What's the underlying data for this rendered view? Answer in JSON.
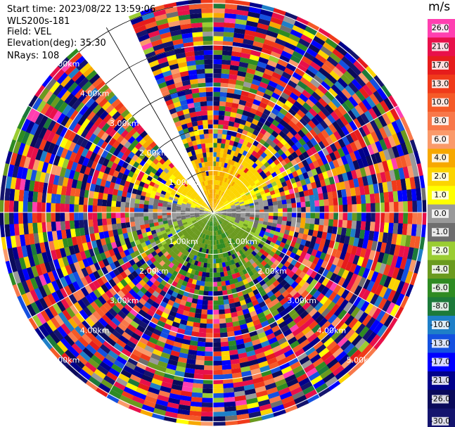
{
  "header": {
    "start_time": "Start time: 2023/08/22 13:59:06",
    "instrument": "WLS200s-181",
    "field": "Field: VEL",
    "elevation": "Elevation(deg): 35.30",
    "nrays": "NRays: 108"
  },
  "colorbar": {
    "unit": "m/s",
    "ticks": [
      "26.0",
      "21.0",
      "17.0",
      "13.0",
      "10.0",
      "8.0",
      "6.0",
      "4.0",
      "2.0",
      "1.0",
      "0.0",
      "-1.0",
      "-2.0",
      "-4.0",
      "-6.0",
      "-8.0",
      "-10.0",
      "-13.0",
      "-17.0",
      "-21.0",
      "-26.0",
      "-30.0"
    ],
    "colors": [
      "#ff3fb0",
      "#e8104a",
      "#e61c1c",
      "#f03a1a",
      "#f55a28",
      "#f8784a",
      "#fa9a6a",
      "#f7a800",
      "#fcd400",
      "#ffff00",
      "#9a9a9a",
      "#6e6e6e",
      "#9acd32",
      "#6a9a1e",
      "#2e8b22",
      "#1c7a3a",
      "#1e7fc8",
      "#1450e0",
      "#0000ff",
      "#00008b",
      "#0a0a5a",
      "#14146e"
    ]
  },
  "chart_data": {
    "type": "heatmap",
    "title": "",
    "projection": "polar PPI",
    "field": "VEL",
    "units": "m/s",
    "elevation_deg": 35.3,
    "n_rays": 108,
    "range_rings_km": [
      1.0,
      2.0,
      3.0,
      4.0,
      5.0
    ],
    "range_ring_labels": [
      "1.00km",
      "2.00km",
      "3.00km",
      "4.00km",
      "5.00km"
    ],
    "missing_sector_az_deg": [
      320,
      337
    ],
    "pattern": {
      "near_north_sector": "positive 1 to 4 m/s (yellow)",
      "near_south_sector": "negative -2 to -8 m/s (green)",
      "near_east_west": "about 0 m/s (gray)",
      "far_range": "noise, mixed values -30 to 26 m/s"
    },
    "vmin": -30.0,
    "vmax": 26.0
  }
}
